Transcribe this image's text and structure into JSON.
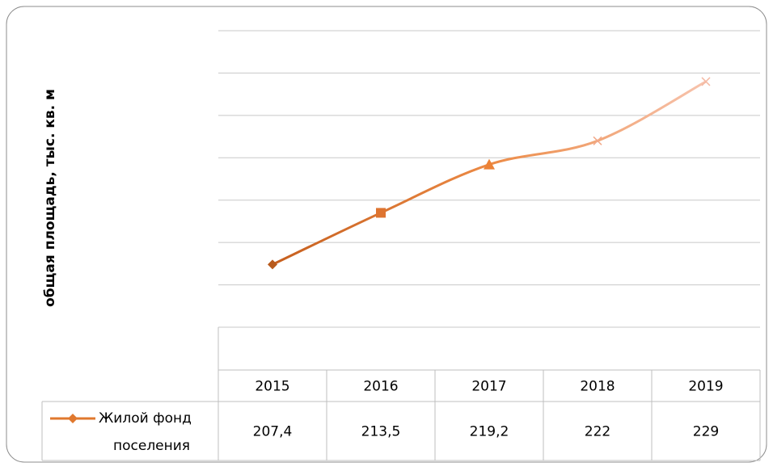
{
  "chart_data": {
    "type": "line",
    "y_label": "общая площадь, тыс. кв. м",
    "categories": [
      "2015",
      "2016",
      "2017",
      "2018",
      "2019"
    ],
    "series": [
      {
        "name": "Жилой фонд поселения",
        "color": "#e0782e",
        "values": [
          207.4,
          213.5,
          219.2,
          222,
          229
        ],
        "value_labels": [
          "207,4",
          "213,5",
          "219,2",
          "222",
          "229"
        ]
      }
    ],
    "markers": [
      "diamond",
      "square",
      "triangle",
      "x",
      "x"
    ],
    "ylim": [
      200,
      235
    ],
    "yticks": [
      200,
      205,
      210,
      215,
      220,
      225,
      230,
      235
    ],
    "grid": true
  }
}
